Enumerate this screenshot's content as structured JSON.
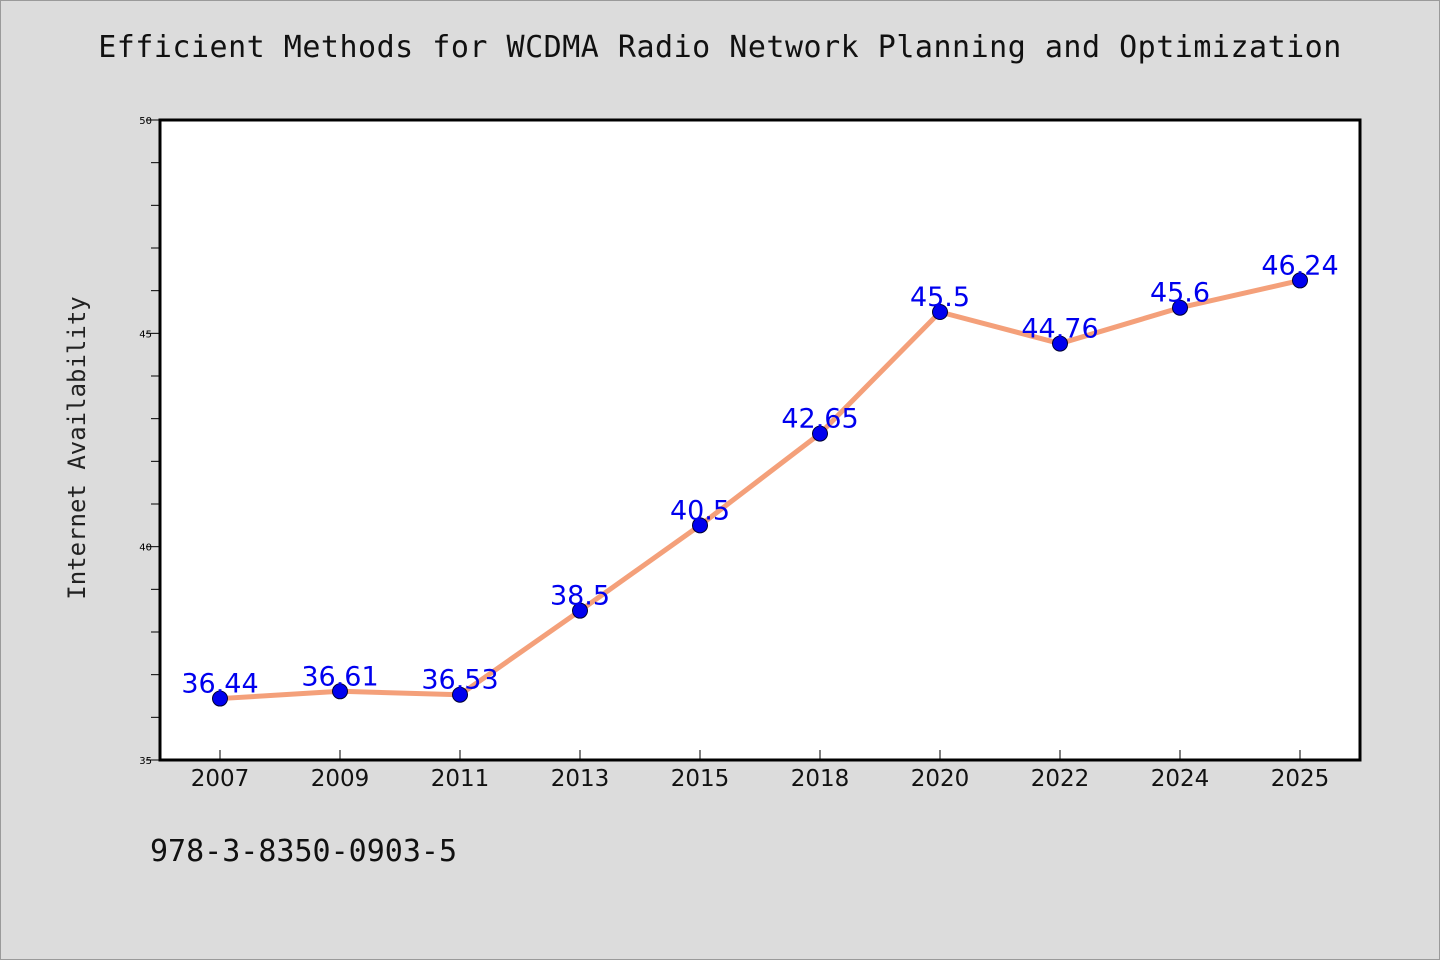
{
  "chart_data": {
    "type": "line",
    "title": "Efficient Methods for WCDMA Radio Network Planning and Optimization",
    "ylabel": "Internet Availability",
    "xlabel": "",
    "categories": [
      "2007",
      "2009",
      "2011",
      "2013",
      "2015",
      "2018",
      "2020",
      "2022",
      "2024",
      "2025"
    ],
    "series": [
      {
        "values": [
          36.44,
          36.61,
          36.53,
          38.5,
          40.5,
          42.65,
          45.5,
          44.76,
          45.6,
          46.24
        ],
        "labels": [
          "36.44",
          "36.61",
          "36.53",
          "38.5",
          "40.5",
          "42.65",
          "45.5",
          "44.76",
          "45.6",
          "46.24"
        ],
        "line_color": "#f4a07a",
        "marker_color": "#0000ee",
        "label_color": "#0000ee"
      }
    ],
    "ylim": [
      35,
      50
    ],
    "yticks": [
      "35",
      "40",
      "45",
      "50"
    ],
    "y_minor_step": 1,
    "grid": false,
    "legend": "none"
  },
  "footnote": "978-3-8350-0903-5",
  "colors": {
    "background": "#dcdcdc",
    "plot_area": "#ffffff",
    "axis": "#000000"
  }
}
